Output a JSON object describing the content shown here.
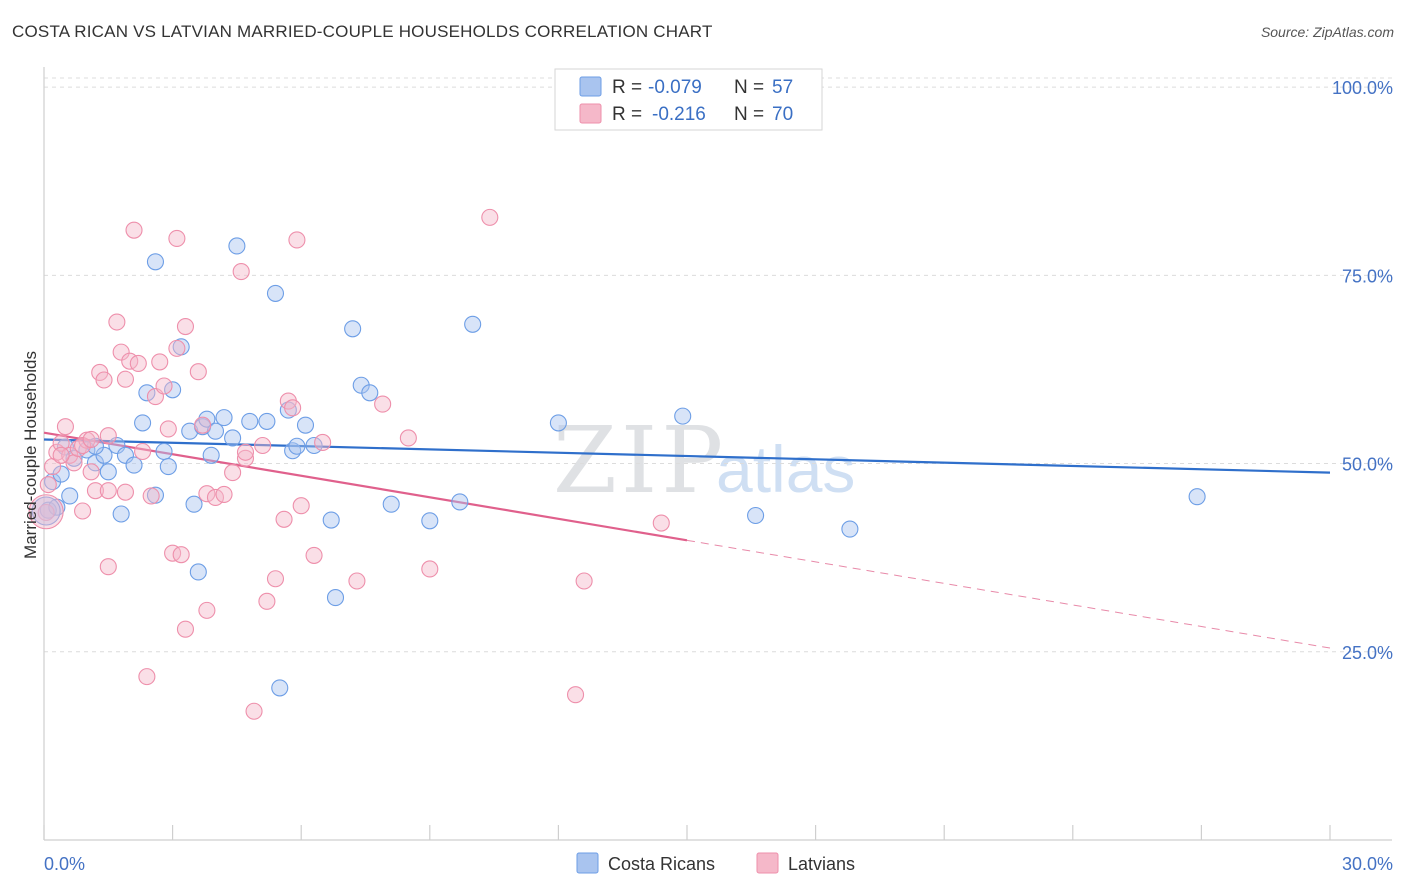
{
  "title": "COSTA RICAN VS LATVIAN MARRIED-COUPLE HOUSEHOLDS CORRELATION CHART",
  "source": "Source: ZipAtlas.com",
  "watermark": {
    "zip": "ZIP",
    "atlas": "atlas"
  },
  "legend": {
    "rows": [
      {
        "r_label": "R =",
        "r_value": "-0.079",
        "n_label": "N =",
        "n_value": "57",
        "color": "#a9c4ef"
      },
      {
        "r_label": "R =",
        "r_value": "-0.216",
        "n_label": "N =",
        "n_value": "70",
        "color": "#f5b8c9"
      }
    ]
  },
  "bottom_legend": [
    {
      "label": "Costa Ricans",
      "color": "#a9c4ef"
    },
    {
      "label": "Latvians",
      "color": "#f5b8c9"
    }
  ],
  "chart_data": {
    "type": "scatter",
    "xlabel": "",
    "ylabel": "Married-couple Households",
    "xlim": [
      0,
      30
    ],
    "ylim": [
      0,
      104
    ],
    "x_tick_labels": [
      "0.0%",
      "30.0%"
    ],
    "y_tick_values": [
      25,
      50,
      75,
      100
    ],
    "y_tick_labels": [
      "25.0%",
      "50.0%",
      "75.0%",
      "100.0%"
    ],
    "grid": true,
    "series": [
      {
        "name": "Costa Ricans",
        "color": "#6d9ee6",
        "fill": "#a9c4ef",
        "trend": {
          "x": [
            0,
            30
          ],
          "y": [
            53.2,
            48.8
          ],
          "dash_from": null
        },
        "points": [
          [
            0.1,
            43.8
          ],
          [
            0.2,
            47.6
          ],
          [
            0.4,
            48.6
          ],
          [
            0.5,
            52.2
          ],
          [
            0.6,
            45.7
          ],
          [
            0.7,
            50.7
          ],
          [
            1.0,
            51.8
          ],
          [
            1.2,
            50.1
          ],
          [
            1.4,
            51.1
          ],
          [
            1.5,
            48.9
          ],
          [
            1.7,
            52.4
          ],
          [
            1.8,
            43.3
          ],
          [
            1.9,
            51.1
          ],
          [
            2.1,
            49.8
          ],
          [
            2.3,
            55.4
          ],
          [
            2.4,
            59.4
          ],
          [
            2.6,
            76.8
          ],
          [
            2.6,
            45.8
          ],
          [
            2.8,
            51.6
          ],
          [
            2.9,
            49.6
          ],
          [
            3.0,
            59.8
          ],
          [
            3.2,
            65.5
          ],
          [
            3.4,
            54.3
          ],
          [
            3.5,
            44.6
          ],
          [
            3.6,
            35.6
          ],
          [
            3.7,
            54.9
          ],
          [
            3.8,
            55.9
          ],
          [
            3.9,
            51.1
          ],
          [
            4.0,
            54.3
          ],
          [
            4.2,
            56.1
          ],
          [
            4.4,
            53.4
          ],
          [
            4.5,
            78.9
          ],
          [
            4.8,
            55.6
          ],
          [
            5.2,
            55.6
          ],
          [
            5.4,
            72.6
          ],
          [
            5.5,
            20.2
          ],
          [
            5.7,
            57.1
          ],
          [
            5.8,
            51.7
          ],
          [
            6.3,
            52.4
          ],
          [
            6.7,
            42.5
          ],
          [
            6.8,
            32.2
          ],
          [
            7.2,
            67.9
          ],
          [
            7.4,
            60.4
          ],
          [
            7.6,
            59.4
          ],
          [
            8.1,
            44.6
          ],
          [
            9.0,
            42.4
          ],
          [
            9.7,
            44.9
          ],
          [
            10.0,
            68.5
          ],
          [
            12.0,
            55.4
          ],
          [
            14.9,
            56.3
          ],
          [
            16.6,
            43.1
          ],
          [
            18.8,
            41.3
          ],
          [
            26.9,
            45.6
          ],
          [
            0.3,
            44.2
          ],
          [
            1.2,
            52.3
          ],
          [
            5.9,
            52.3
          ],
          [
            6.1,
            55.1
          ]
        ]
      },
      {
        "name": "Latvians",
        "color": "#ee8fab",
        "fill": "#f5b8c9",
        "trend": {
          "x": [
            0,
            30
          ],
          "y": [
            54.1,
            25.5
          ],
          "dash_from": 15
        },
        "points": [
          [
            0.05,
            43.5
          ],
          [
            0.1,
            47.2
          ],
          [
            0.2,
            49.6
          ],
          [
            0.3,
            51.5
          ],
          [
            0.4,
            52.7
          ],
          [
            0.5,
            54.9
          ],
          [
            0.6,
            51.1
          ],
          [
            0.7,
            50.1
          ],
          [
            0.8,
            52.0
          ],
          [
            0.9,
            43.7
          ],
          [
            1.0,
            53.1
          ],
          [
            1.1,
            48.9
          ],
          [
            1.2,
            46.4
          ],
          [
            1.3,
            62.1
          ],
          [
            1.4,
            61.1
          ],
          [
            1.5,
            46.4
          ],
          [
            1.5,
            36.3
          ],
          [
            1.7,
            68.8
          ],
          [
            1.8,
            64.8
          ],
          [
            1.9,
            46.2
          ],
          [
            1.9,
            61.2
          ],
          [
            2.0,
            63.6
          ],
          [
            2.1,
            81.0
          ],
          [
            2.2,
            63.3
          ],
          [
            2.3,
            51.6
          ],
          [
            2.4,
            21.7
          ],
          [
            2.5,
            45.7
          ],
          [
            2.6,
            58.9
          ],
          [
            2.8,
            60.3
          ],
          [
            2.9,
            54.6
          ],
          [
            3.0,
            38.1
          ],
          [
            3.1,
            79.9
          ],
          [
            3.1,
            65.3
          ],
          [
            3.2,
            37.9
          ],
          [
            3.3,
            68.2
          ],
          [
            3.3,
            28.0
          ],
          [
            3.6,
            62.2
          ],
          [
            3.8,
            46.0
          ],
          [
            3.8,
            30.5
          ],
          [
            4.0,
            45.5
          ],
          [
            4.2,
            45.9
          ],
          [
            4.4,
            48.8
          ],
          [
            4.6,
            75.5
          ],
          [
            4.7,
            50.7
          ],
          [
            4.7,
            51.5
          ],
          [
            4.9,
            17.1
          ],
          [
            5.1,
            52.4
          ],
          [
            5.2,
            31.7
          ],
          [
            5.4,
            34.7
          ],
          [
            5.6,
            42.6
          ],
          [
            5.7,
            58.3
          ],
          [
            5.8,
            57.4
          ],
          [
            5.9,
            79.7
          ],
          [
            6.0,
            44.4
          ],
          [
            6.3,
            37.8
          ],
          [
            6.5,
            52.8
          ],
          [
            7.3,
            34.4
          ],
          [
            7.9,
            57.9
          ],
          [
            8.5,
            53.4
          ],
          [
            9.0,
            36.0
          ],
          [
            10.4,
            82.7
          ],
          [
            12.4,
            19.3
          ],
          [
            12.6,
            34.4
          ],
          [
            14.4,
            42.1
          ],
          [
            0.4,
            51.1
          ],
          [
            0.9,
            52.4
          ],
          [
            1.1,
            53.2
          ],
          [
            2.7,
            63.5
          ],
          [
            3.7,
            55.1
          ],
          [
            1.5,
            53.7
          ]
        ]
      }
    ]
  }
}
